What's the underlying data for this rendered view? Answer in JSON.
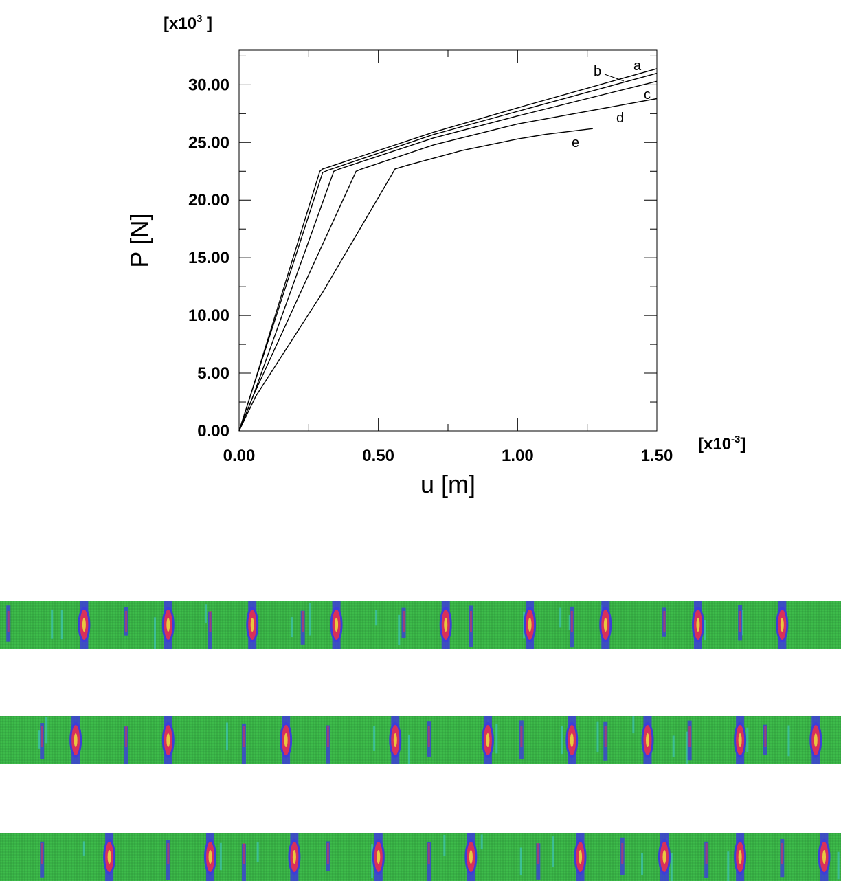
{
  "chart_data": {
    "type": "line",
    "xlabel": "u [m]",
    "ylabel": "P [N]",
    "x_multiplier": "[x10-3]",
    "y_multiplier": "[x103]",
    "xlim": [
      0,
      1.5
    ],
    "ylim": [
      0,
      33
    ],
    "x_ticks": [
      "0.00",
      "0.50",
      "1.00",
      "1.50"
    ],
    "y_ticks": [
      "0.00",
      "5.00",
      "10.00",
      "15.00",
      "20.00",
      "25.00",
      "30.00"
    ],
    "grid": false,
    "series": [
      {
        "name": "a",
        "x": [
          0,
          0.04,
          0.29,
          0.3,
          0.7,
          1.0,
          1.5
        ],
        "y": [
          0,
          3.0,
          22.5,
          22.7,
          25.9,
          28.0,
          31.4
        ]
      },
      {
        "name": "b",
        "x": [
          0,
          0.04,
          0.3,
          0.32,
          0.7,
          1.0,
          1.5
        ],
        "y": [
          0,
          3.0,
          22.4,
          22.6,
          25.7,
          27.7,
          31.0
        ]
      },
      {
        "name": "c",
        "x": [
          0,
          0.05,
          0.34,
          0.36,
          0.7,
          1.0,
          1.5
        ],
        "y": [
          0,
          3.0,
          22.5,
          22.7,
          25.4,
          27.3,
          30.3
        ]
      },
      {
        "name": "d",
        "x": [
          0,
          0.05,
          0.42,
          0.44,
          0.7,
          1.0,
          1.5
        ],
        "y": [
          0,
          3.0,
          22.5,
          22.7,
          24.8,
          26.6,
          28.8
        ]
      },
      {
        "name": "e",
        "x": [
          0,
          0.06,
          0.3,
          0.56,
          0.6,
          0.8,
          1.0,
          1.1,
          1.27
        ],
        "y": [
          0,
          3.0,
          12.0,
          22.7,
          23.0,
          24.3,
          25.3,
          25.7,
          26.2
        ]
      }
    ]
  },
  "strips": [
    {
      "bands": [
        0.01,
        0.1,
        0.15,
        0.2,
        0.25,
        0.3,
        0.36,
        0.4,
        0.48,
        0.53,
        0.56,
        0.63,
        0.68,
        0.72,
        0.79,
        0.83,
        0.88,
        0.93
      ]
    },
    {
      "bands": [
        0.05,
        0.09,
        0.15,
        0.2,
        0.29,
        0.34,
        0.39,
        0.47,
        0.51,
        0.58,
        0.62,
        0.68,
        0.72,
        0.77,
        0.82,
        0.88,
        0.91,
        0.97
      ]
    },
    {
      "bands": [
        0.05,
        0.13,
        0.2,
        0.25,
        0.29,
        0.35,
        0.39,
        0.45,
        0.51,
        0.56,
        0.64,
        0.69,
        0.74,
        0.79,
        0.84,
        0.88,
        0.93,
        0.98
      ]
    }
  ],
  "colors": {
    "green": "#3dbb4a",
    "blue": "#3d3dd8",
    "red": "#d8305a",
    "yellow": "#e8c840",
    "cyan": "#40c8d8"
  }
}
